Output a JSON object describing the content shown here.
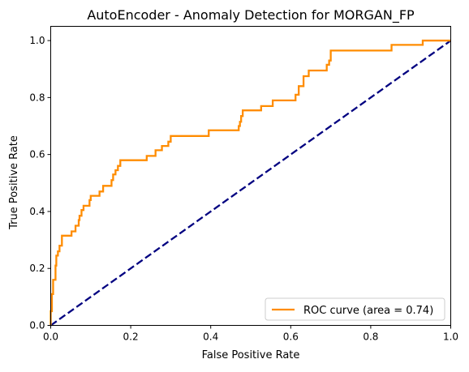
{
  "chart_data": {
    "type": "line",
    "title": "AutoEncoder - Anomaly Detection for MORGAN_FP",
    "xlabel": "False Positive Rate",
    "ylabel": "True Positive Rate",
    "xlim": [
      0.0,
      1.0
    ],
    "ylim": [
      0.0,
      1.05
    ],
    "xticks": [
      0.0,
      0.2,
      0.4,
      0.6,
      0.8,
      1.0
    ],
    "yticks": [
      0.0,
      0.2,
      0.4,
      0.6,
      0.8,
      1.0
    ],
    "xtick_labels": [
      "0.0",
      "0.2",
      "0.4",
      "0.6",
      "0.8",
      "1.0"
    ],
    "ytick_labels": [
      "0.0",
      "0.2",
      "0.4",
      "0.6",
      "0.8",
      "1.0"
    ],
    "grid": false,
    "legend_position": "lower-right",
    "series": [
      {
        "name": "ROC curve (area = 0.74)",
        "color": "#ff8c00",
        "style": "solid",
        "points": [
          [
            0.0,
            0.0
          ],
          [
            0.0,
            0.05
          ],
          [
            0.003,
            0.05
          ],
          [
            0.003,
            0.11
          ],
          [
            0.006,
            0.11
          ],
          [
            0.006,
            0.16
          ],
          [
            0.012,
            0.16
          ],
          [
            0.012,
            0.21
          ],
          [
            0.014,
            0.21
          ],
          [
            0.014,
            0.245
          ],
          [
            0.018,
            0.245
          ],
          [
            0.018,
            0.26
          ],
          [
            0.022,
            0.26
          ],
          [
            0.022,
            0.28
          ],
          [
            0.028,
            0.28
          ],
          [
            0.028,
            0.315
          ],
          [
            0.052,
            0.315
          ],
          [
            0.052,
            0.33
          ],
          [
            0.062,
            0.33
          ],
          [
            0.062,
            0.35
          ],
          [
            0.07,
            0.35
          ],
          [
            0.07,
            0.37
          ],
          [
            0.072,
            0.37
          ],
          [
            0.072,
            0.385
          ],
          [
            0.077,
            0.385
          ],
          [
            0.077,
            0.405
          ],
          [
            0.082,
            0.405
          ],
          [
            0.082,
            0.42
          ],
          [
            0.097,
            0.42
          ],
          [
            0.097,
            0.44
          ],
          [
            0.1,
            0.44
          ],
          [
            0.1,
            0.455
          ],
          [
            0.122,
            0.455
          ],
          [
            0.122,
            0.47
          ],
          [
            0.131,
            0.47
          ],
          [
            0.131,
            0.49
          ],
          [
            0.152,
            0.49
          ],
          [
            0.152,
            0.51
          ],
          [
            0.156,
            0.51
          ],
          [
            0.156,
            0.53
          ],
          [
            0.162,
            0.53
          ],
          [
            0.162,
            0.545
          ],
          [
            0.168,
            0.545
          ],
          [
            0.168,
            0.56
          ],
          [
            0.174,
            0.56
          ],
          [
            0.174,
            0.58
          ],
          [
            0.24,
            0.58
          ],
          [
            0.24,
            0.595
          ],
          [
            0.262,
            0.595
          ],
          [
            0.262,
            0.615
          ],
          [
            0.278,
            0.615
          ],
          [
            0.278,
            0.63
          ],
          [
            0.294,
            0.63
          ],
          [
            0.294,
            0.645
          ],
          [
            0.3,
            0.645
          ],
          [
            0.3,
            0.665
          ],
          [
            0.395,
            0.665
          ],
          [
            0.395,
            0.685
          ],
          [
            0.47,
            0.685
          ],
          [
            0.47,
            0.7
          ],
          [
            0.473,
            0.7
          ],
          [
            0.473,
            0.715
          ],
          [
            0.476,
            0.715
          ],
          [
            0.476,
            0.735
          ],
          [
            0.48,
            0.735
          ],
          [
            0.48,
            0.755
          ],
          [
            0.526,
            0.755
          ],
          [
            0.526,
            0.77
          ],
          [
            0.555,
            0.77
          ],
          [
            0.555,
            0.79
          ],
          [
            0.612,
            0.79
          ],
          [
            0.612,
            0.81
          ],
          [
            0.62,
            0.81
          ],
          [
            0.62,
            0.84
          ],
          [
            0.632,
            0.84
          ],
          [
            0.632,
            0.875
          ],
          [
            0.645,
            0.875
          ],
          [
            0.645,
            0.895
          ],
          [
            0.69,
            0.895
          ],
          [
            0.69,
            0.915
          ],
          [
            0.696,
            0.915
          ],
          [
            0.696,
            0.93
          ],
          [
            0.7,
            0.93
          ],
          [
            0.7,
            0.965
          ],
          [
            0.852,
            0.965
          ],
          [
            0.852,
            0.985
          ],
          [
            0.93,
            0.985
          ],
          [
            0.93,
            1.0
          ],
          [
            1.0,
            1.0
          ]
        ]
      },
      {
        "name": "",
        "color": "#000080",
        "style": "dashed",
        "points": [
          [
            0.0,
            0.0
          ],
          [
            1.0,
            1.0
          ]
        ]
      }
    ]
  }
}
